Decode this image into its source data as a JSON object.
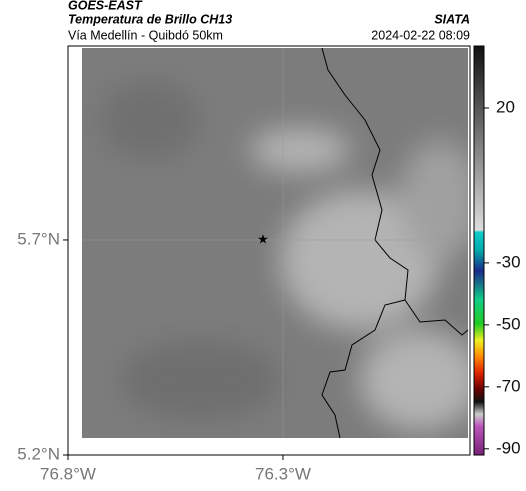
{
  "header": {
    "source": "GOES-EAST",
    "product": "Temperatura de Brillo CH13",
    "region": "Vía Medellín - Quibdó 50km",
    "agency": "SIATA",
    "datetime": "2024-02-22 08:09"
  },
  "map": {
    "xlim": [
      -76.8,
      -75.865
    ],
    "ylim": [
      5.2,
      6.151
    ],
    "xticks": [
      {
        "value": -76.8,
        "label": "76.8°W"
      },
      {
        "value": -76.3,
        "label": "76.3°W"
      }
    ],
    "yticks": [
      {
        "value": 5.2,
        "label": "5.2°N"
      },
      {
        "value": 5.7,
        "label": "5.7°N"
      }
    ]
  },
  "colorbar": {
    "lim": [
      -92,
      40
    ],
    "ticks": [
      20,
      -30,
      -50,
      -70,
      -90
    ]
  }
}
